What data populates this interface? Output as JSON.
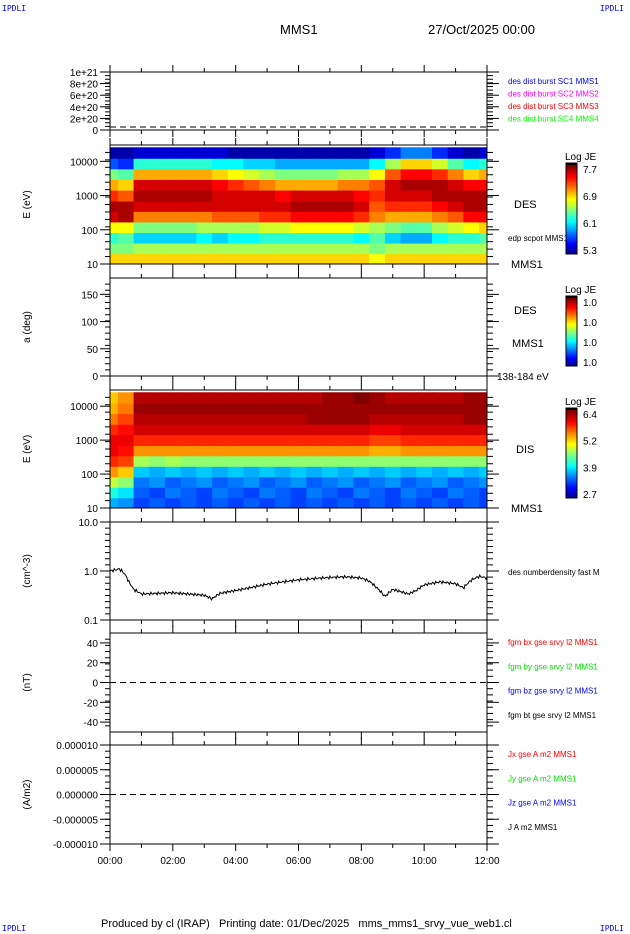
{
  "header": {
    "corner_left": "IPDLI",
    "corner_right": "IPDLI",
    "spacecraft": "MMS1",
    "date": "27/Oct/2025 00:00"
  },
  "footer": {
    "text": "Produced by cl (IRAP)   Printing date: 01/Dec/2025   mms_mms1_srvy_vue_web1.cl",
    "corner_left": "IPDLI",
    "corner_right": "IPDLI"
  },
  "x_axis": {
    "range_hours": [
      0,
      12
    ],
    "ticks": [
      "00:00",
      "02:00",
      "04:00",
      "06:00",
      "08:00",
      "10:00",
      "12:00"
    ]
  },
  "chart_data": [
    {
      "type": "line",
      "ylim": [
        0,
        1e+21
      ],
      "yticks": [
        "0",
        "2e+20",
        "4e+20",
        "6e+20",
        "8e+20",
        "1e+21"
      ],
      "zero_line": "dashed",
      "legend": [
        {
          "text": "des dist burst SC1 MMS1",
          "color": "#0000ff"
        },
        {
          "text": "des dist burst SC2 MMS2",
          "color": "#ff00ff"
        },
        {
          "text": "des dist burst SC3 MMS3",
          "color": "#ff0000"
        },
        {
          "text": "des dist burst SC4 MMS4",
          "color": "#00ff00"
        }
      ]
    },
    {
      "type": "heatmap",
      "ylabel": "E (eV)",
      "yscale": "log",
      "ylim": [
        10,
        30000
      ],
      "yticks": [
        "10",
        "100",
        "1000",
        "10000"
      ],
      "colorbar": {
        "title": "Log JE",
        "ticks": [
          "7.7",
          "6.9",
          "6.1",
          "5.3"
        ],
        "range": [
          5.3,
          7.7
        ]
      },
      "labels": [
        "DES",
        "edp scpot MMS1",
        "MMS1"
      ],
      "times": [
        0,
        0.5,
        1,
        1.5,
        2,
        2.5,
        3,
        3.5,
        4,
        4.5,
        5,
        5.5,
        6,
        6.5,
        7,
        7.5,
        8,
        8.5,
        9,
        9.5,
        10,
        10.5,
        11,
        11.5,
        12
      ],
      "energies": [
        14,
        29,
        59,
        120,
        245,
        500,
        1000,
        2090,
        4270,
        8710,
        17800
      ],
      "values": [
        [
          6.9,
          6.9,
          6.9,
          6.9,
          6.9,
          6.9,
          6.9,
          6.9,
          6.9,
          6.9,
          6.9,
          6.9,
          6.9,
          6.9,
          6.9,
          6.9,
          6.9,
          6.8,
          6.9,
          6.9,
          6.9,
          6.9,
          6.9,
          6.9,
          6.9
        ],
        [
          6.5,
          6.5,
          6.6,
          6.6,
          6.6,
          6.6,
          6.6,
          6.6,
          6.6,
          6.6,
          6.6,
          6.6,
          6.6,
          6.6,
          6.6,
          6.6,
          6.6,
          6.5,
          6.6,
          6.6,
          6.6,
          6.6,
          6.6,
          6.6,
          6.6
        ],
        [
          6.3,
          6.4,
          6.1,
          6.1,
          6.1,
          6.1,
          6.2,
          6.1,
          6.2,
          6.2,
          6.3,
          6.3,
          6.3,
          6.3,
          6.3,
          6.3,
          6.2,
          6.4,
          6.1,
          6.0,
          6.0,
          6.2,
          6.3,
          6.3,
          6.4
        ],
        [
          6.8,
          6.8,
          6.5,
          6.5,
          6.5,
          6.5,
          6.6,
          6.6,
          6.6,
          6.6,
          6.7,
          6.7,
          6.8,
          6.8,
          6.8,
          6.8,
          6.7,
          6.6,
          6.5,
          6.4,
          6.4,
          6.6,
          6.7,
          6.8,
          6.9
        ],
        [
          7.5,
          7.6,
          7.1,
          7.1,
          7.1,
          7.1,
          7.1,
          7.2,
          7.2,
          7.2,
          7.3,
          7.3,
          7.4,
          7.4,
          7.4,
          7.4,
          7.3,
          7.1,
          7.0,
          7.0,
          7.0,
          7.1,
          7.2,
          7.4,
          7.4
        ],
        [
          7.6,
          7.6,
          7.5,
          7.5,
          7.5,
          7.5,
          7.5,
          7.5,
          7.5,
          7.5,
          7.5,
          7.5,
          7.6,
          7.6,
          7.6,
          7.6,
          7.5,
          7.2,
          7.3,
          7.3,
          7.3,
          7.4,
          7.5,
          7.6,
          7.6
        ],
        [
          7.3,
          7.2,
          7.6,
          7.6,
          7.6,
          7.6,
          7.6,
          7.5,
          7.5,
          7.5,
          7.5,
          7.4,
          7.5,
          7.5,
          7.5,
          7.5,
          7.4,
          7.3,
          7.5,
          7.5,
          7.5,
          7.6,
          7.6,
          7.6,
          7.6
        ],
        [
          7.0,
          6.9,
          7.5,
          7.5,
          7.5,
          7.5,
          7.5,
          7.4,
          7.3,
          7.2,
          7.1,
          7.0,
          7.0,
          7.0,
          7.0,
          7.1,
          7.1,
          7.2,
          7.5,
          7.6,
          7.6,
          7.6,
          7.5,
          7.4,
          7.4
        ],
        [
          6.5,
          6.4,
          7.0,
          7.0,
          7.0,
          7.0,
          7.0,
          6.9,
          6.8,
          6.7,
          6.6,
          6.5,
          6.5,
          6.5,
          6.5,
          6.6,
          6.6,
          6.8,
          7.2,
          7.4,
          7.4,
          7.3,
          7.1,
          6.9,
          7.0
        ],
        [
          5.8,
          5.7,
          6.3,
          6.3,
          6.3,
          6.3,
          6.3,
          6.2,
          6.2,
          6.1,
          6.1,
          6.0,
          6.0,
          6.0,
          6.0,
          6.0,
          6.0,
          6.2,
          6.6,
          6.9,
          6.9,
          6.7,
          6.4,
          6.2,
          6.3
        ],
        [
          5.4,
          5.4,
          5.5,
          5.5,
          5.5,
          5.5,
          5.5,
          5.5,
          5.4,
          5.4,
          5.4,
          5.4,
          5.4,
          5.4,
          5.4,
          5.4,
          5.4,
          5.5,
          5.7,
          5.9,
          5.9,
          5.7,
          5.5,
          5.4,
          5.5
        ]
      ]
    },
    {
      "type": "heatmap",
      "ylabel": "a (deg)",
      "ylim": [
        0,
        180
      ],
      "yticks": [
        "0",
        "50",
        "100",
        "150"
      ],
      "colorbar": {
        "title": "Log JE",
        "ticks": [
          "1.0",
          "1.0",
          "1.0",
          "1.0"
        ]
      },
      "labels": [
        "DES",
        "MMS1",
        "138-184 eV"
      ]
    },
    {
      "type": "heatmap",
      "ylabel": "E (eV)",
      "yscale": "log",
      "ylim": [
        10,
        30000
      ],
      "yticks": [
        "10",
        "100",
        "1000",
        "10000"
      ],
      "colorbar": {
        "title": "Log JE",
        "ticks": [
          "6.4",
          "5.2",
          "3.9",
          "2.7"
        ],
        "range": [
          2.7,
          6.4
        ]
      },
      "labels": [
        "DIS",
        "MMS1"
      ],
      "times": [
        0,
        0.5,
        1,
        1.5,
        2,
        2.5,
        3,
        3.5,
        4,
        4.5,
        5,
        5.5,
        6,
        6.5,
        7,
        7.5,
        8,
        8.5,
        9,
        9.5,
        10,
        10.5,
        11,
        11.5,
        12
      ],
      "energies": [
        14,
        29,
        59,
        120,
        245,
        500,
        1000,
        2090,
        4270,
        8710,
        17800
      ],
      "values": [
        [
          3.8,
          3.7,
          3.4,
          3.5,
          3.4,
          3.5,
          3.4,
          3.5,
          3.4,
          3.5,
          3.4,
          3.5,
          3.4,
          3.5,
          3.4,
          3.5,
          3.4,
          3.5,
          3.4,
          3.5,
          3.4,
          3.5,
          3.4,
          3.5,
          3.4
        ],
        [
          4.2,
          4.0,
          3.5,
          3.4,
          3.6,
          3.5,
          3.4,
          3.6,
          3.5,
          3.4,
          3.6,
          3.5,
          3.4,
          3.6,
          3.5,
          3.4,
          3.6,
          3.5,
          3.4,
          3.6,
          3.5,
          3.4,
          3.6,
          3.5,
          3.4
        ],
        [
          4.8,
          4.6,
          3.6,
          3.7,
          3.5,
          3.6,
          3.7,
          3.5,
          3.6,
          3.7,
          3.5,
          3.6,
          3.7,
          3.5,
          3.6,
          3.7,
          3.5,
          3.6,
          3.7,
          3.5,
          3.6,
          3.7,
          3.5,
          3.6,
          3.7
        ],
        [
          5.4,
          5.2,
          3.9,
          3.8,
          3.9,
          3.8,
          3.9,
          3.8,
          3.9,
          3.8,
          3.9,
          3.8,
          3.9,
          3.8,
          3.9,
          3.8,
          3.9,
          3.8,
          3.9,
          3.8,
          3.9,
          3.8,
          3.9,
          3.8,
          3.9
        ],
        [
          5.8,
          5.7,
          4.7,
          4.6,
          4.7,
          4.6,
          4.6,
          4.6,
          4.6,
          4.6,
          4.6,
          4.6,
          4.6,
          4.6,
          4.6,
          4.6,
          4.6,
          4.6,
          4.6,
          4.6,
          4.6,
          4.6,
          4.6,
          4.6,
          4.6
        ],
        [
          6.0,
          5.9,
          5.4,
          5.4,
          5.4,
          5.4,
          5.4,
          5.4,
          5.4,
          5.4,
          5.4,
          5.4,
          5.4,
          5.4,
          5.4,
          5.4,
          5.4,
          5.3,
          5.3,
          5.4,
          5.4,
          5.4,
          5.4,
          5.4,
          5.4
        ],
        [
          6.0,
          6.0,
          5.8,
          5.8,
          5.8,
          5.8,
          5.8,
          5.8,
          5.8,
          5.8,
          5.8,
          5.8,
          5.8,
          5.8,
          5.8,
          5.8,
          5.8,
          5.7,
          5.7,
          5.8,
          5.8,
          5.8,
          5.8,
          5.8,
          5.8
        ],
        [
          5.8,
          5.9,
          6.1,
          6.1,
          6.1,
          6.1,
          6.1,
          6.1,
          6.1,
          6.1,
          6.1,
          6.1,
          6.1,
          6.1,
          6.1,
          6.1,
          6.1,
          6.0,
          6.0,
          6.1,
          6.1,
          6.1,
          6.1,
          6.1,
          6.1
        ],
        [
          5.5,
          5.7,
          6.2,
          6.2,
          6.2,
          6.2,
          6.2,
          6.2,
          6.2,
          6.2,
          6.2,
          6.2,
          6.2,
          6.3,
          6.3,
          6.3,
          6.3,
          6.2,
          6.2,
          6.2,
          6.2,
          6.2,
          6.2,
          6.3,
          6.3
        ],
        [
          5.3,
          5.5,
          6.3,
          6.3,
          6.3,
          6.3,
          6.3,
          6.3,
          6.3,
          6.3,
          6.3,
          6.3,
          6.3,
          6.3,
          6.3,
          6.3,
          6.3,
          6.3,
          6.3,
          6.3,
          6.3,
          6.3,
          6.3,
          6.3,
          6.3
        ],
        [
          5.2,
          5.4,
          6.2,
          6.2,
          6.2,
          6.2,
          6.2,
          6.2,
          6.2,
          6.2,
          6.2,
          6.2,
          6.2,
          6.2,
          6.3,
          6.3,
          6.4,
          6.3,
          6.2,
          6.2,
          6.2,
          6.2,
          6.2,
          6.3,
          6.3
        ]
      ]
    },
    {
      "type": "line",
      "ylabel": "(cm^-3)",
      "yscale": "log",
      "ylim": [
        0.1,
        10
      ],
      "yticks": [
        "0.1",
        "1.0",
        "10.0"
      ],
      "legend": [
        {
          "text": "des numberdensity fast M",
          "color": "#000000"
        }
      ],
      "series": [
        {
          "x": [
            0,
            0.15,
            0.3,
            0.45,
            0.6,
            0.75,
            1,
            1.5,
            2,
            2.5,
            3,
            3.25,
            3.5,
            4,
            4.5,
            5,
            5.5,
            6,
            6.5,
            7,
            7.5,
            8,
            8.25,
            8.5,
            8.75,
            9,
            9.25,
            9.5,
            9.75,
            10,
            10.5,
            11,
            11.25,
            11.5,
            11.75,
            12
          ],
          "y": [
            1.0,
            1.05,
            1.1,
            0.9,
            0.6,
            0.42,
            0.34,
            0.35,
            0.36,
            0.34,
            0.32,
            0.27,
            0.35,
            0.4,
            0.46,
            0.54,
            0.6,
            0.66,
            0.7,
            0.74,
            0.76,
            0.72,
            0.62,
            0.45,
            0.3,
            0.42,
            0.38,
            0.34,
            0.4,
            0.52,
            0.6,
            0.55,
            0.45,
            0.65,
            0.78,
            0.72
          ],
          "color": "#000000"
        }
      ]
    },
    {
      "type": "line",
      "ylabel": "(nT)",
      "ylim": [
        -50,
        50
      ],
      "yticks": [
        "40",
        "20",
        "0",
        "-20",
        "-40"
      ],
      "zero_line": "dashed",
      "legend": [
        {
          "text": "fgm bx gse srvy l2 MMS1",
          "color": "#ff0000"
        },
        {
          "text": "fgm by gse srvy l2 MMS1",
          "color": "#00dd00"
        },
        {
          "text": "fgm bz gse srvy l2 MMS1",
          "color": "#0000ff"
        },
        {
          "text": "fgm bt gse srvy l2 MMS1",
          "color": "#000000"
        }
      ]
    },
    {
      "type": "line",
      "ylabel": "(A/m2)",
      "ylim": [
        -1e-05,
        1e-05
      ],
      "yticks": [
        "0.000010",
        "0.000005",
        "0.000000",
        "-0.000005",
        "-0.000010"
      ],
      "zero_line": "dashed",
      "legend": [
        {
          "text": "Jx gse A m2 MMS1",
          "color": "#ff0000"
        },
        {
          "text": "Jy gse A m2 MMS1",
          "color": "#00dd00"
        },
        {
          "text": "Jz gse A m2 MMS1",
          "color": "#0000ff"
        },
        {
          "text": "J A m2 MMS1",
          "color": "#000000"
        }
      ]
    }
  ]
}
